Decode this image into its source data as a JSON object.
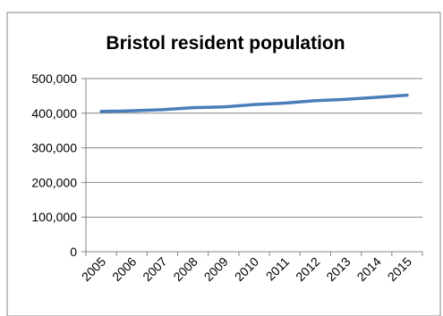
{
  "chart_data": {
    "type": "line",
    "title": "Bristol resident population",
    "categories": [
      "2005",
      "2006",
      "2007",
      "2008",
      "2009",
      "2010",
      "2011",
      "2012",
      "2013",
      "2014",
      "2015"
    ],
    "series": [
      {
        "name": "",
        "values": [
          405000,
          407000,
          410000,
          416000,
          418000,
          425000,
          429000,
          436000,
          440000,
          446000,
          452000
        ]
      }
    ],
    "y_ticks": [
      "0",
      "100,000",
      "200,000",
      "300,000",
      "400,000",
      "500,000"
    ],
    "ylim": [
      0,
      500000
    ],
    "xlabel": "",
    "ylabel": "",
    "grid": true,
    "legend": "none",
    "colors": {
      "line": "#4a7ebb",
      "grid": "#868686",
      "axis": "#868686",
      "border": "#868686"
    }
  }
}
